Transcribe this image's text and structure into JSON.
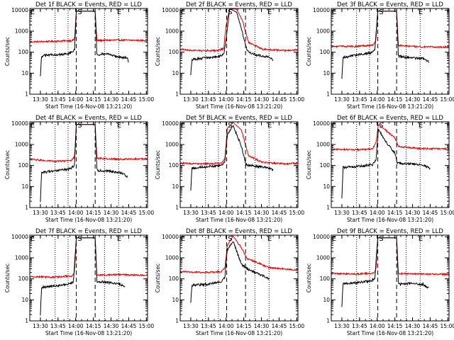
{
  "chart_data": [
    {
      "title": "Det 1f BLACK = Events, RED = LLD",
      "type": "line"
    },
    {
      "title": "Det 2f BLACK = Events, RED = LLD",
      "type": "line"
    },
    {
      "title": "Det 3f BLACK = Events, RED = LLD",
      "type": "line"
    },
    {
      "title": "Det 4f BLACK = Events, RED = LLD",
      "type": "line"
    },
    {
      "title": "Det 5f BLACK = Events, RED = LLD",
      "type": "line"
    },
    {
      "title": "Det 6f BLACK = Events, RED = LLD",
      "type": "line"
    },
    {
      "title": "Det 7f BLACK = Events, RED = LLD",
      "type": "line"
    },
    {
      "title": "Det 8f BLACK = Events, RED = LLD",
      "type": "line"
    },
    {
      "title": "Det 9f BLACK = Events, RED = LLD",
      "type": "line"
    }
  ],
  "shared": {
    "ylabel": "Counts/sec",
    "xlabel": "Start Time (16-Nov-08 13:21:20)",
    "x_ticks": [
      "13:30",
      "13:45",
      "14:00",
      "14:15",
      "14:30",
      "14:45",
      "15:00"
    ],
    "x_ticks_minutes": [
      9,
      24,
      39,
      54,
      69,
      84,
      99
    ],
    "xlim_minutes": [
      0,
      100
    ],
    "y_ticks": [
      "1",
      "10",
      "100",
      "1000",
      "10000"
    ],
    "y_tick_values": [
      1,
      10,
      100,
      1000,
      10000
    ],
    "ylim": [
      1,
      12000
    ],
    "yscale": "log",
    "markers": [
      "E",
      "S",
      "E"
    ],
    "dotted_lines_minutes": [
      21.5,
      32.5,
      63.5,
      75.5
    ],
    "dashed_lines_minutes": [
      39.5,
      55.5
    ],
    "colors": {
      "events": "#000000",
      "lld": "#dd0000"
    }
  }
}
